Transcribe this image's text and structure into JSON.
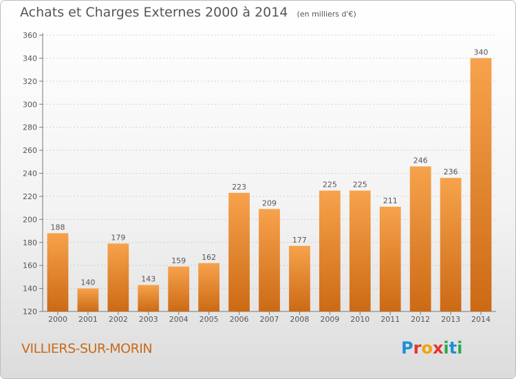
{
  "title": "Achats et Charges Externes 2000 à 2014",
  "unit": "(en milliers d'€)",
  "commune": "VILLIERS-SUR-MORIN",
  "logo": {
    "text": "Proxiti",
    "letters": [
      {
        "ch": "P",
        "color": "#1d8fd8"
      },
      {
        "ch": "r",
        "color": "#e3342f"
      },
      {
        "ch": "o",
        "color": "#f0a30a"
      },
      {
        "ch": "x",
        "color": "#e3342f"
      },
      {
        "ch": "i",
        "color": "#2fa84f"
      },
      {
        "ch": "t",
        "color": "#1d8fd8"
      },
      {
        "ch": "i",
        "color": "#2fa84f"
      }
    ]
  },
  "colors": {
    "bar_light": "#f7a24c",
    "bar_dark": "#cc6a14",
    "commune": "#c8691c",
    "text": "#555555"
  },
  "chart_data": {
    "type": "bar",
    "title": "Achats et Charges Externes 2000 à 2014",
    "categories": [
      "2000",
      "2001",
      "2002",
      "2003",
      "2004",
      "2005",
      "2006",
      "2007",
      "2008",
      "2009",
      "2010",
      "2011",
      "2012",
      "2013",
      "2014"
    ],
    "values": [
      188,
      140,
      179,
      143,
      159,
      162,
      223,
      209,
      177,
      225,
      225,
      211,
      246,
      236,
      340
    ],
    "ylim": [
      120,
      360
    ],
    "yticks": [
      120,
      140,
      160,
      180,
      200,
      220,
      240,
      260,
      280,
      300,
      320,
      340,
      360
    ],
    "grid": true,
    "xlabel": "",
    "ylabel": ""
  }
}
